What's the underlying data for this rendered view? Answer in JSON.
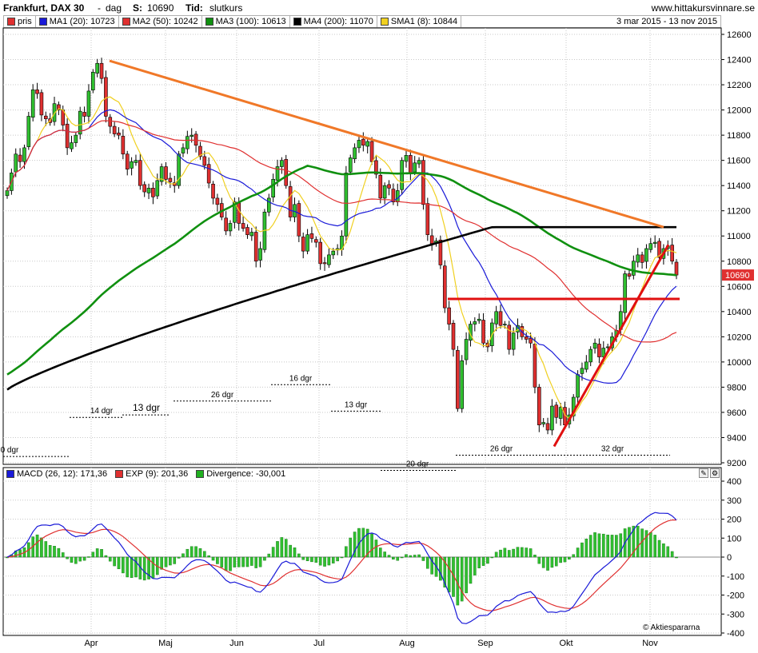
{
  "header": {
    "name": "Frankfurt, DAX 30",
    "sep": "-",
    "period": "dag",
    "s_label": "S:",
    "s_value": "10690",
    "tid_label": "Tid:",
    "tid_value": "slutkurs",
    "site": "www.hittakursvinnare.se"
  },
  "legend": [
    {
      "label": "pris",
      "color": "#e03030"
    },
    {
      "label": "MA1 (20): 10723",
      "color": "#1a1ad8"
    },
    {
      "label": "MA2 (50): 10242",
      "color": "#e03030"
    },
    {
      "label": "MA3 (100): 10613",
      "color": "#109010"
    },
    {
      "label": "MA4 (200): 11070",
      "color": "#000000"
    },
    {
      "label": "SMA1 (8): 10844",
      "color": "#f0d020"
    }
  ],
  "date_range": "3 mar 2015 - 13 nov 2015",
  "price_tag": "10690",
  "macd_legend": [
    {
      "label": "MACD (26, 12): 171,36",
      "color": "#1a1ad8"
    },
    {
      "label": "EXP (9): 201,36",
      "color": "#e03030"
    },
    {
      "label": "Divergence: -30,001",
      "color": "#20b020"
    }
  ],
  "copyright": "© Aktiespararna",
  "chart_data": [
    {
      "type": "candlestick",
      "title": "Frankfurt, DAX 30",
      "ylim": [
        9200,
        12600
      ],
      "y_ticks": [
        9200,
        9400,
        9600,
        9800,
        10000,
        10200,
        10400,
        10600,
        10800,
        11000,
        11200,
        11400,
        11600,
        11800,
        12000,
        12200,
        12400,
        12600
      ],
      "x_ticks": [
        "Apr",
        "Maj",
        "Jun",
        "Jul",
        "Aug",
        "Sep",
        "Okt",
        "Nov"
      ],
      "close": [
        11360,
        11500,
        11650,
        11590,
        11700,
        11950,
        12160,
        12130,
        11960,
        11930,
        11900,
        12050,
        12000,
        11880,
        11700,
        11740,
        11800,
        11990,
        11950,
        12150,
        12300,
        12370,
        12250,
        11950,
        11870,
        11810,
        11800,
        11650,
        11530,
        11590,
        11600,
        11400,
        11350,
        11380,
        11310,
        11440,
        11550,
        11450,
        11430,
        11400,
        11650,
        11700,
        11790,
        11800,
        11720,
        11630,
        11560,
        11420,
        11300,
        11250,
        11150,
        11040,
        11100,
        11270,
        11100,
        11060,
        11010,
        11030,
        10800,
        10900,
        11190,
        11300,
        11450,
        11550,
        11600,
        11400,
        11150,
        11250,
        11000,
        10880,
        11010,
        10980,
        10950,
        10780,
        10780,
        10850,
        10880,
        10900,
        11000,
        11500,
        11620,
        11700,
        11760,
        11720,
        11750,
        11590,
        11490,
        11300,
        11400,
        11380,
        11270,
        11360,
        11600,
        11640,
        11500,
        11580,
        11600,
        11250,
        11010,
        10940,
        10960,
        10770,
        10430,
        10300,
        10100,
        9630,
        10010,
        10180,
        10300,
        10320,
        10340,
        10150,
        10120,
        10310,
        10400,
        10290,
        10300,
        10100,
        10230,
        10290,
        10200,
        10180,
        10150,
        9800,
        9500,
        9520,
        9460,
        9650,
        9560,
        9640,
        9500,
        9580,
        9720,
        9900,
        9950,
        10000,
        10100,
        10150,
        10040,
        10110,
        10120,
        10200,
        10250,
        10400,
        10700,
        10680,
        10800,
        10850,
        10790,
        10900,
        10940,
        10950,
        10830,
        10900,
        10920,
        10800,
        10690
      ],
      "ma20_end": 10723,
      "ma50_end": 10242,
      "ma100_end": 10613,
      "ma200_end": 11070,
      "sma8_end": 10844,
      "annotations": {
        "cycles": [
          {
            "label": "0 dgr"
          },
          {
            "label": "14 dgr"
          },
          {
            "label": "13 dgr"
          },
          {
            "label": "26 dgr"
          },
          {
            "label": "16 dgr"
          },
          {
            "label": "13 dgr"
          },
          {
            "label": "20 dgr"
          },
          {
            "label": "26 dgr"
          },
          {
            "label": "32 dgr"
          }
        ]
      }
    },
    {
      "type": "macd",
      "ylim": [
        -400,
        400
      ],
      "y_ticks": [
        -400,
        -300,
        -200,
        -100,
        0,
        100,
        200,
        300,
        400
      ],
      "macd_end": 171.36,
      "signal_end": 201.36,
      "divergence_end": -30.001
    }
  ]
}
